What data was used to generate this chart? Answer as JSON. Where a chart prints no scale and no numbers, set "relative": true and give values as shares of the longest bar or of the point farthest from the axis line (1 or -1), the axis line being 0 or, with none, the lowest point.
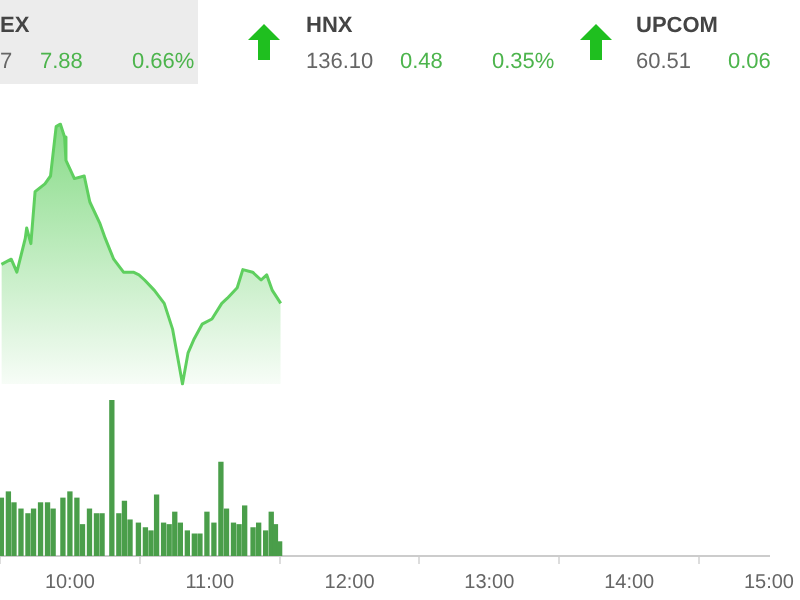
{
  "chart_data": [
    {
      "type": "other",
      "annotations": [
        "EX",
        "7",
        "7.88",
        "0.66%",
        "HNX",
        "136.10",
        "0.48",
        "0.35%",
        "UPCOM",
        "60.51",
        "0.06"
      ]
    },
    {
      "type": "area",
      "relative": true,
      "tick_labels": false,
      "xlim": [
        9.5,
        15
      ],
      "color": "#5fcf5f",
      "x": [
        9.51,
        9.58,
        9.62,
        9.68,
        9.69,
        9.72,
        9.75,
        9.82,
        9.86,
        9.9,
        9.93,
        9.96,
        9.97,
        10.03,
        10.1,
        10.14,
        10.21,
        10.25,
        10.31,
        10.38,
        10.45,
        10.49,
        10.53,
        10.6,
        10.67,
        10.73,
        10.8,
        10.84,
        10.88,
        10.94,
        11.01,
        11.08,
        11.12,
        11.19,
        11.23,
        11.3,
        11.36,
        11.4,
        11.44,
        11.5
      ],
      "values": [
        0.46,
        0.48,
        0.43,
        0.56,
        0.6,
        0.54,
        0.74,
        0.77,
        0.8,
        0.99,
        1,
        0.95,
        0.86,
        0.79,
        0.8,
        0.7,
        0.62,
        0.56,
        0.48,
        0.43,
        0.43,
        0.42,
        0.4,
        0.36,
        0.31,
        0.21,
        0,
        0.12,
        0.17,
        0.23,
        0.25,
        0.31,
        0.33,
        0.37,
        0.44,
        0.43,
        0.4,
        0.42,
        0.36,
        0.31
      ]
    },
    {
      "type": "bar",
      "relative": true,
      "tick_labels": "x",
      "xlim": [
        9.5,
        15
      ],
      "color": "#4a9e4a",
      "xticks": [
        {
          "value": 10,
          "label": "10:00"
        },
        {
          "value": 11,
          "label": "11:00"
        },
        {
          "value": 12,
          "label": "12:00"
        },
        {
          "value": 13,
          "label": "13:00"
        },
        {
          "value": 14,
          "label": "14:00"
        },
        {
          "value": 15,
          "label": "15:00"
        }
      ],
      "x": [
        9.51,
        9.56,
        9.6,
        9.65,
        9.7,
        9.74,
        9.79,
        9.84,
        9.88,
        9.95,
        10,
        10.05,
        10.09,
        10.14,
        10.19,
        10.23,
        10.3,
        10.35,
        10.39,
        10.43,
        10.49,
        10.54,
        10.58,
        10.62,
        10.67,
        10.71,
        10.75,
        10.79,
        10.84,
        10.89,
        10.93,
        10.98,
        11.03,
        11.08,
        11.12,
        11.17,
        11.21,
        11.25,
        11.31,
        11.35,
        11.4,
        11.44,
        11.47,
        11.5
      ],
      "values": [
        0.37,
        0.41,
        0.34,
        0.3,
        0.27,
        0.3,
        0.34,
        0.34,
        0.3,
        0.37,
        0.41,
        0.37,
        0.2,
        0.3,
        0.27,
        0.27,
        1,
        0.27,
        0.35,
        0.23,
        0.21,
        0.18,
        0.16,
        0.39,
        0.21,
        0.2,
        0.28,
        0.21,
        0.16,
        0.14,
        0.14,
        0.28,
        0.21,
        0.6,
        0.3,
        0.21,
        0.2,
        0.32,
        0.18,
        0.21,
        0.16,
        0.28,
        0.2,
        0.09
      ]
    }
  ]
}
